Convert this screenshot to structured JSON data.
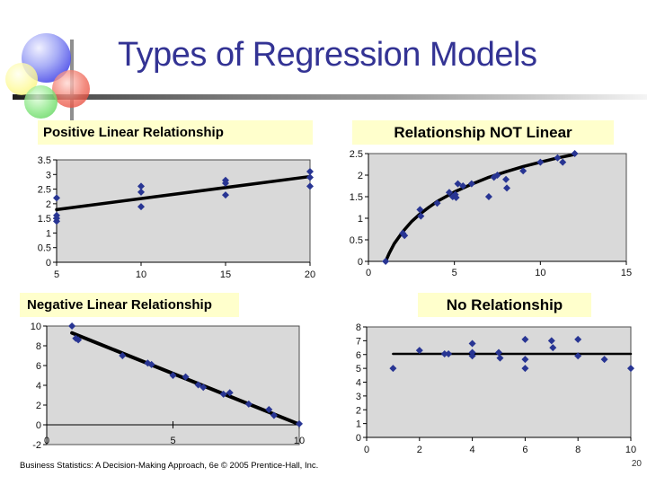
{
  "page": {
    "title": "Types of Regression Models",
    "title_color": "#333394",
    "highlight_color": "#ffffcc",
    "point_color": "#283593",
    "plot_bg": "#d9d9d9",
    "footer": "Business Statistics: A Decision-Making Approach, 6e © 2005 Prentice-Hall, Inc.",
    "page_number": "20"
  },
  "chart_data": [
    {
      "id": "positive-linear",
      "type": "scatter",
      "title": "Positive Linear Relationship",
      "xlabel": "",
      "ylabel": "",
      "xlim": [
        5,
        20
      ],
      "ylim": [
        0,
        3.5
      ],
      "xticks": [
        5,
        10,
        15,
        20
      ],
      "yticks": [
        0,
        0.5,
        1,
        1.5,
        2,
        2.5,
        3,
        3.5
      ],
      "grid": false,
      "legend": "none",
      "points": [
        [
          5,
          2.2
        ],
        [
          5,
          1.6
        ],
        [
          5,
          1.5
        ],
        [
          5,
          1.4
        ],
        [
          10,
          2.6
        ],
        [
          10,
          2.4
        ],
        [
          10,
          1.9
        ],
        [
          15,
          2.8
        ],
        [
          15,
          2.7
        ],
        [
          15,
          2.3
        ],
        [
          20,
          3.1
        ],
        [
          20,
          2.9
        ],
        [
          20,
          2.6
        ]
      ],
      "trend": {
        "kind": "line",
        "points": [
          [
            5,
            1.8
          ],
          [
            20,
            2.93
          ]
        ]
      }
    },
    {
      "id": "not-linear",
      "type": "scatter",
      "title": "Relationship NOT Linear",
      "xlabel": "",
      "ylabel": "",
      "xlim": [
        0,
        15
      ],
      "ylim": [
        0,
        2.5
      ],
      "xticks": [
        0,
        5,
        10,
        15
      ],
      "yticks": [
        0,
        0.5,
        1,
        1.5,
        2,
        2.5
      ],
      "grid": false,
      "legend": "none",
      "points": [
        [
          1,
          0
        ],
        [
          2,
          0.65
        ],
        [
          2.1,
          0.6
        ],
        [
          3,
          1.2
        ],
        [
          3.05,
          1.05
        ],
        [
          4,
          1.35
        ],
        [
          4.7,
          1.6
        ],
        [
          4.9,
          1.5
        ],
        [
          5.05,
          1.55
        ],
        [
          5.1,
          1.48
        ],
        [
          5.2,
          1.8
        ],
        [
          5.5,
          1.75
        ],
        [
          6,
          1.8
        ],
        [
          7,
          1.5
        ],
        [
          7.3,
          1.95
        ],
        [
          7.5,
          2.0
        ],
        [
          8,
          1.9
        ],
        [
          8.05,
          1.7
        ],
        [
          9,
          2.1
        ],
        [
          10,
          2.3
        ],
        [
          11,
          2.4
        ],
        [
          11.3,
          2.3
        ],
        [
          12,
          2.5
        ]
      ],
      "trend": {
        "kind": "curve",
        "points": [
          [
            1,
            0
          ],
          [
            1.2,
            0.18
          ],
          [
            1.5,
            0.41
          ],
          [
            2,
            0.69
          ],
          [
            2.5,
            0.92
          ],
          [
            3,
            1.1
          ],
          [
            3.5,
            1.25
          ],
          [
            4,
            1.39
          ],
          [
            4.5,
            1.5
          ],
          [
            5,
            1.61
          ],
          [
            6,
            1.79
          ],
          [
            7,
            1.95
          ],
          [
            8,
            2.08
          ],
          [
            9,
            2.2
          ],
          [
            10,
            2.3
          ],
          [
            11,
            2.4
          ],
          [
            12,
            2.48
          ]
        ]
      }
    },
    {
      "id": "negative-linear",
      "type": "scatter",
      "title": "Negative Linear Relationship",
      "xlabel": "",
      "ylabel": "",
      "xlim": [
        0,
        10
      ],
      "ylim": [
        -2,
        10
      ],
      "xticks": [
        0,
        5,
        10
      ],
      "yticks": [
        -2,
        0,
        2,
        4,
        6,
        8,
        10
      ],
      "x_axis_at": 0,
      "grid": false,
      "legend": "none",
      "points": [
        [
          1,
          10
        ],
        [
          1.15,
          8.75
        ],
        [
          1.25,
          8.6
        ],
        [
          3,
          7
        ],
        [
          4,
          6.25
        ],
        [
          4.15,
          6.1
        ],
        [
          5,
          5
        ],
        [
          5.5,
          4.85
        ],
        [
          6,
          4.05
        ],
        [
          6.2,
          3.8
        ],
        [
          7,
          3.1
        ],
        [
          7.25,
          3.25
        ],
        [
          8,
          2.1
        ],
        [
          8.8,
          1.55
        ],
        [
          9,
          0.95
        ],
        [
          10,
          0.1
        ]
      ],
      "trend": {
        "kind": "line",
        "points": [
          [
            1,
            9.3
          ],
          [
            10,
            0.05
          ]
        ]
      }
    },
    {
      "id": "no-relationship",
      "type": "scatter",
      "title": "No Relationship",
      "xlabel": "",
      "ylabel": "",
      "xlim": [
        0,
        10
      ],
      "ylim": [
        0,
        8
      ],
      "xticks": [
        0,
        2,
        4,
        6,
        8,
        10
      ],
      "yticks": [
        0,
        1,
        2,
        3,
        4,
        5,
        6,
        7,
        8
      ],
      "grid": false,
      "legend": "none",
      "points": [
        [
          1,
          5
        ],
        [
          2,
          6.3
        ],
        [
          2.95,
          6.05
        ],
        [
          3.1,
          6.05
        ],
        [
          4,
          6.8
        ],
        [
          4,
          6.15
        ],
        [
          4,
          5.9
        ],
        [
          5,
          6.15
        ],
        [
          5.05,
          5.75
        ],
        [
          6,
          7.1
        ],
        [
          6,
          5.65
        ],
        [
          6,
          5.0
        ],
        [
          7,
          7.0
        ],
        [
          7.05,
          6.5
        ],
        [
          8,
          7.1
        ],
        [
          8,
          5.9
        ],
        [
          9,
          5.65
        ],
        [
          10,
          5.0
        ]
      ],
      "trend": {
        "kind": "line",
        "points": [
          [
            1,
            6.05
          ],
          [
            10,
            6.05
          ]
        ]
      }
    }
  ]
}
